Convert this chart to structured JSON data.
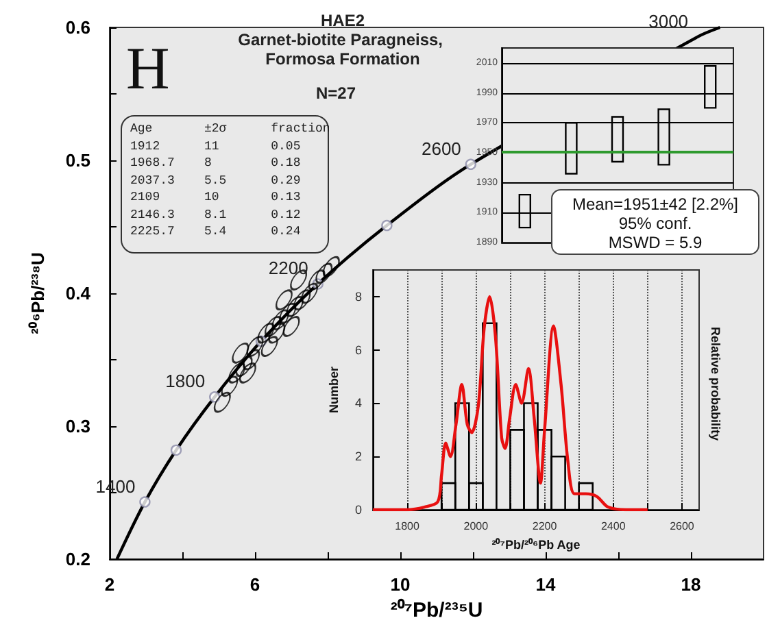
{
  "chart_data": [
    {
      "type": "scatter",
      "title": "HAE2",
      "subtitle": "Garnet-biotite Paragneiss, Formosa Formation",
      "xlabel": "²⁰⁷Pb/²³⁵U",
      "ylabel": "²⁰⁶Pb/²³⁸U",
      "xlim": [
        2,
        20
      ],
      "xticks": [
        2,
        {
          "value": 4,
          "label": null
        },
        6,
        {
          "value": 8,
          "label": null
        },
        10,
        {
          "value": 12,
          "label": null
        },
        14,
        {
          "value": 16,
          "label": null
        },
        18
      ],
      "ylim": [
        0.2,
        0.6
      ],
      "yticks": [
        0.2,
        {
          "value": 0.25,
          "label": null
        },
        0.3,
        {
          "value": 0.35,
          "label": null
        },
        0.4,
        {
          "value": 0.45,
          "label": null
        },
        0.5,
        {
          "value": 0.55,
          "label": null
        },
        0.6
      ],
      "grid": false,
      "marker": "circle",
      "series": [
        {
          "type": "line",
          "color": "#000000",
          "marker": "none",
          "x": [
            2.2,
            2.97,
            3.83,
            4.89,
            6.17,
            7.73,
            9.63,
            11.94,
            18.19,
            18.8
          ],
          "values": [
            0.2,
            0.243,
            0.282,
            0.322,
            0.364,
            0.407,
            0.451,
            0.497,
            0.593,
            0.6
          ]
        },
        {
          "type": "scatter",
          "color": "#8a8aa8",
          "x": [
            2.97,
            3.83,
            4.89,
            6.17,
            7.73,
            9.63,
            11.94
          ],
          "values": [
            0.243,
            0.282,
            0.322,
            0.364,
            0.407,
            0.451,
            0.497
          ]
        },
        {
          "type": "scatter",
          "color": "#000000",
          "x": [
            5.1,
            5.3,
            5.5,
            5.7,
            5.9,
            5.6,
            6.0,
            6.3,
            6.5,
            6.7,
            6.9,
            7.1,
            6.6,
            7.0,
            7.3,
            7.5,
            7.7,
            7.9,
            8.1,
            7.2,
            6.4,
            5.8,
            6.8
          ],
          "values": [
            0.318,
            0.33,
            0.34,
            0.345,
            0.35,
            0.355,
            0.36,
            0.37,
            0.375,
            0.38,
            0.385,
            0.39,
            0.37,
            0.375,
            0.395,
            0.4,
            0.41,
            0.415,
            0.42,
            0.41,
            0.36,
            0.34,
            0.395
          ]
        }
      ],
      "annotations": [
        "H",
        "N=27",
        {
          "text": "1400",
          "x": 2.97,
          "y": 0.243
        },
        {
          "text": "1800",
          "x": 4.89,
          "y": 0.322
        },
        {
          "text": "2200",
          "x": 7.73,
          "y": 0.407
        },
        {
          "text": "2600",
          "x": 11.94,
          "y": 0.497
        },
        {
          "text": "3000",
          "x": 18.19,
          "y": 0.593
        }
      ]
    },
    {
      "type": "other",
      "annotations": [
        "Age ±2σ fraction",
        "1912 11 0.05",
        "1968.7 8 0.18",
        "2037.3 5.5 0.29",
        "2109 10 0.13",
        "2146.3 8.1 0.12",
        "2225.7 5.4 0.24"
      ]
    },
    {
      "type": "bar",
      "categories": [
        null,
        null,
        null,
        null,
        null
      ],
      "values": [
        22,
        34,
        30,
        37,
        28
      ],
      "base": [
        1900,
        1936,
        1944,
        1942,
        1980
      ],
      "color": "#000000",
      "ylim": [
        1890,
        2020
      ],
      "yticks": [
        1890,
        1910,
        1930,
        1950,
        1970,
        1990,
        2010
      ],
      "grid": "y",
      "ref_lines": [
        {
          "axis": "y",
          "value": 1951,
          "color": "#2e9a2e"
        }
      ],
      "annotations": [
        "Mean=1951±42 [2.2%]",
        "95% conf.",
        "MSWD = 5.9"
      ]
    },
    {
      "type": "histogram",
      "xlabel": "²⁰⁷Pb/²⁰⁶Pb Age",
      "ylabel": "Number",
      "y2label": "Relative probability",
      "xlim": [
        1700,
        2650
      ],
      "xticks": [
        1800,
        {
          "value": 1900,
          "label": null
        },
        2000,
        {
          "value": 2100,
          "label": null
        },
        2200,
        {
          "value": 2300,
          "label": null
        },
        2400,
        {
          "value": 2500,
          "label": null
        },
        2600
      ],
      "ylim": [
        0,
        9
      ],
      "yticks": [
        0,
        2,
        4,
        6,
        8
      ],
      "grid": "x",
      "series": [
        {
          "type": "histogram",
          "color": "#000000",
          "bins": [
            1900,
            1940,
            1980,
            2020,
            2060,
            2100,
            2140,
            2180,
            2220,
            2260,
            2300,
            2340
          ],
          "values": [
            1,
            4,
            1,
            7,
            0,
            3,
            4,
            3,
            2,
            0,
            1
          ]
        },
        {
          "type": "line",
          "color": "#e81010",
          "x": [
            1700,
            1800,
            1850,
            1889,
            1900,
            1912,
            1926,
            1942,
            1959,
            1975,
            1988,
            2007,
            2024,
            2040,
            2057,
            2075,
            2085,
            2098,
            2116,
            2133,
            2153,
            2170,
            2188,
            2200,
            2226,
            2248,
            2268,
            2287,
            2320,
            2352,
            2385,
            2437,
            2500
          ],
          "values": [
            0,
            0,
            0.1,
            0.3,
            1.3,
            2.5,
            2.0,
            3.2,
            4.7,
            3.2,
            2.9,
            3.9,
            6.8,
            8.0,
            6.5,
            2.7,
            2.3,
            3.4,
            4.7,
            4.0,
            5.3,
            3.4,
            1.0,
            3.0,
            6.9,
            4.7,
            1.8,
            0.6,
            0.6,
            0.5,
            0.1,
            0,
            0
          ]
        }
      ]
    }
  ]
}
